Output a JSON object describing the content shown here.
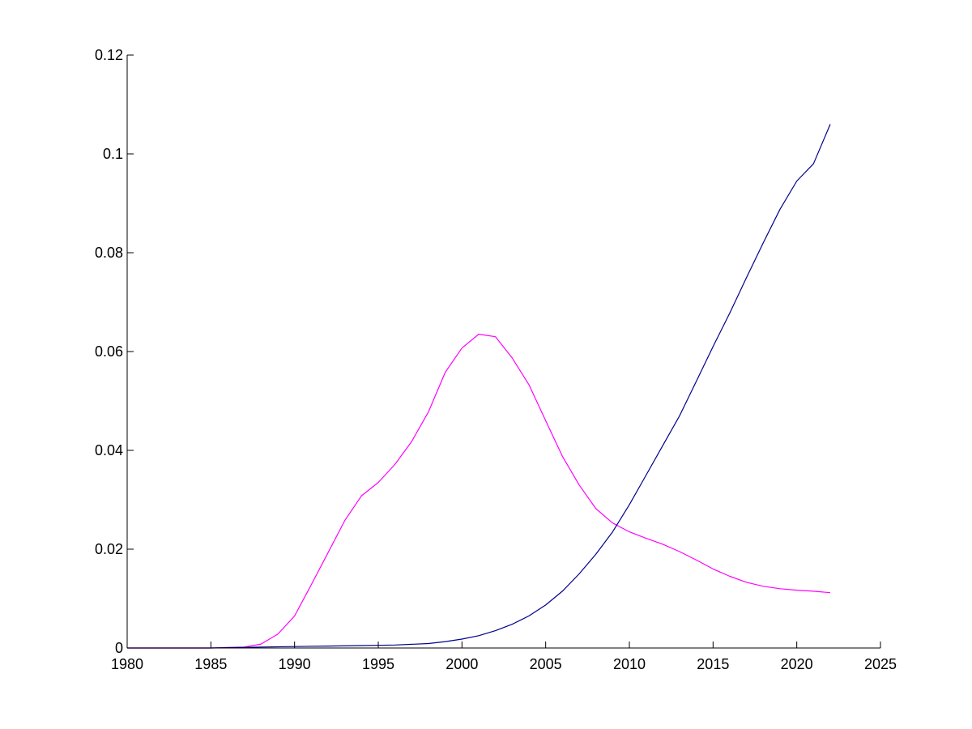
{
  "chart_data": {
    "type": "line",
    "title": "",
    "xlabel": "",
    "ylabel": "",
    "xlim": [
      1980,
      2025
    ],
    "ylim": [
      0,
      0.12
    ],
    "grid": false,
    "legend": "none",
    "x_ticks": [
      "1980",
      "1985",
      "1990",
      "1995",
      "2000",
      "2005",
      "2010",
      "2015",
      "2020",
      "2025"
    ],
    "y_ticks": [
      "0",
      "0.02",
      "0.04",
      "0.06",
      "0.08",
      "0.1",
      "0.12"
    ],
    "series": [
      {
        "color": "#ff00ff",
        "x": [
          1980,
          1985,
          1986,
          1987,
          1988,
          1989,
          1990,
          1991,
          1992,
          1993,
          1994,
          1995,
          1996,
          1997,
          1998,
          1999,
          2000,
          2001,
          2002,
          2003,
          2004,
          2005,
          2006,
          2007,
          2008,
          2009,
          2010,
          2011,
          2012,
          2013,
          2014,
          2015,
          2016,
          2017,
          2018,
          2019,
          2020,
          2021,
          2022
        ],
        "y": [
          0,
          0,
          0.0001,
          0.0002,
          0.0008,
          0.0028,
          0.0065,
          0.0128,
          0.0193,
          0.0258,
          0.0308,
          0.0335,
          0.0372,
          0.0418,
          0.0478,
          0.0558,
          0.0607,
          0.0635,
          0.063,
          0.0587,
          0.0533,
          0.046,
          0.0388,
          0.033,
          0.0282,
          0.0253,
          0.0235,
          0.0222,
          0.021,
          0.0195,
          0.0178,
          0.016,
          0.0145,
          0.0133,
          0.0125,
          0.012,
          0.0117,
          0.0115,
          0.0112
        ]
      },
      {
        "color": "#00008b",
        "x": [
          1980,
          1985,
          1988,
          1990,
          1992,
          1994,
          1996,
          1998,
          1999,
          2000,
          2001,
          2002,
          2003,
          2004,
          2005,
          2006,
          2007,
          2008,
          2009,
          2010,
          2011,
          2012,
          2013,
          2014,
          2015,
          2016,
          2017,
          2018,
          2019,
          2020,
          2021,
          2022
        ],
        "y": [
          0,
          0,
          0.0002,
          0.0003,
          0.0004,
          0.0005,
          0.0006,
          0.0009,
          0.0013,
          0.0018,
          0.0025,
          0.0035,
          0.0048,
          0.0065,
          0.0087,
          0.0115,
          0.015,
          0.019,
          0.0235,
          0.029,
          0.035,
          0.041,
          0.047,
          0.054,
          0.061,
          0.0678,
          0.075,
          0.082,
          0.0888,
          0.0945,
          0.098,
          0.106
        ]
      }
    ]
  }
}
